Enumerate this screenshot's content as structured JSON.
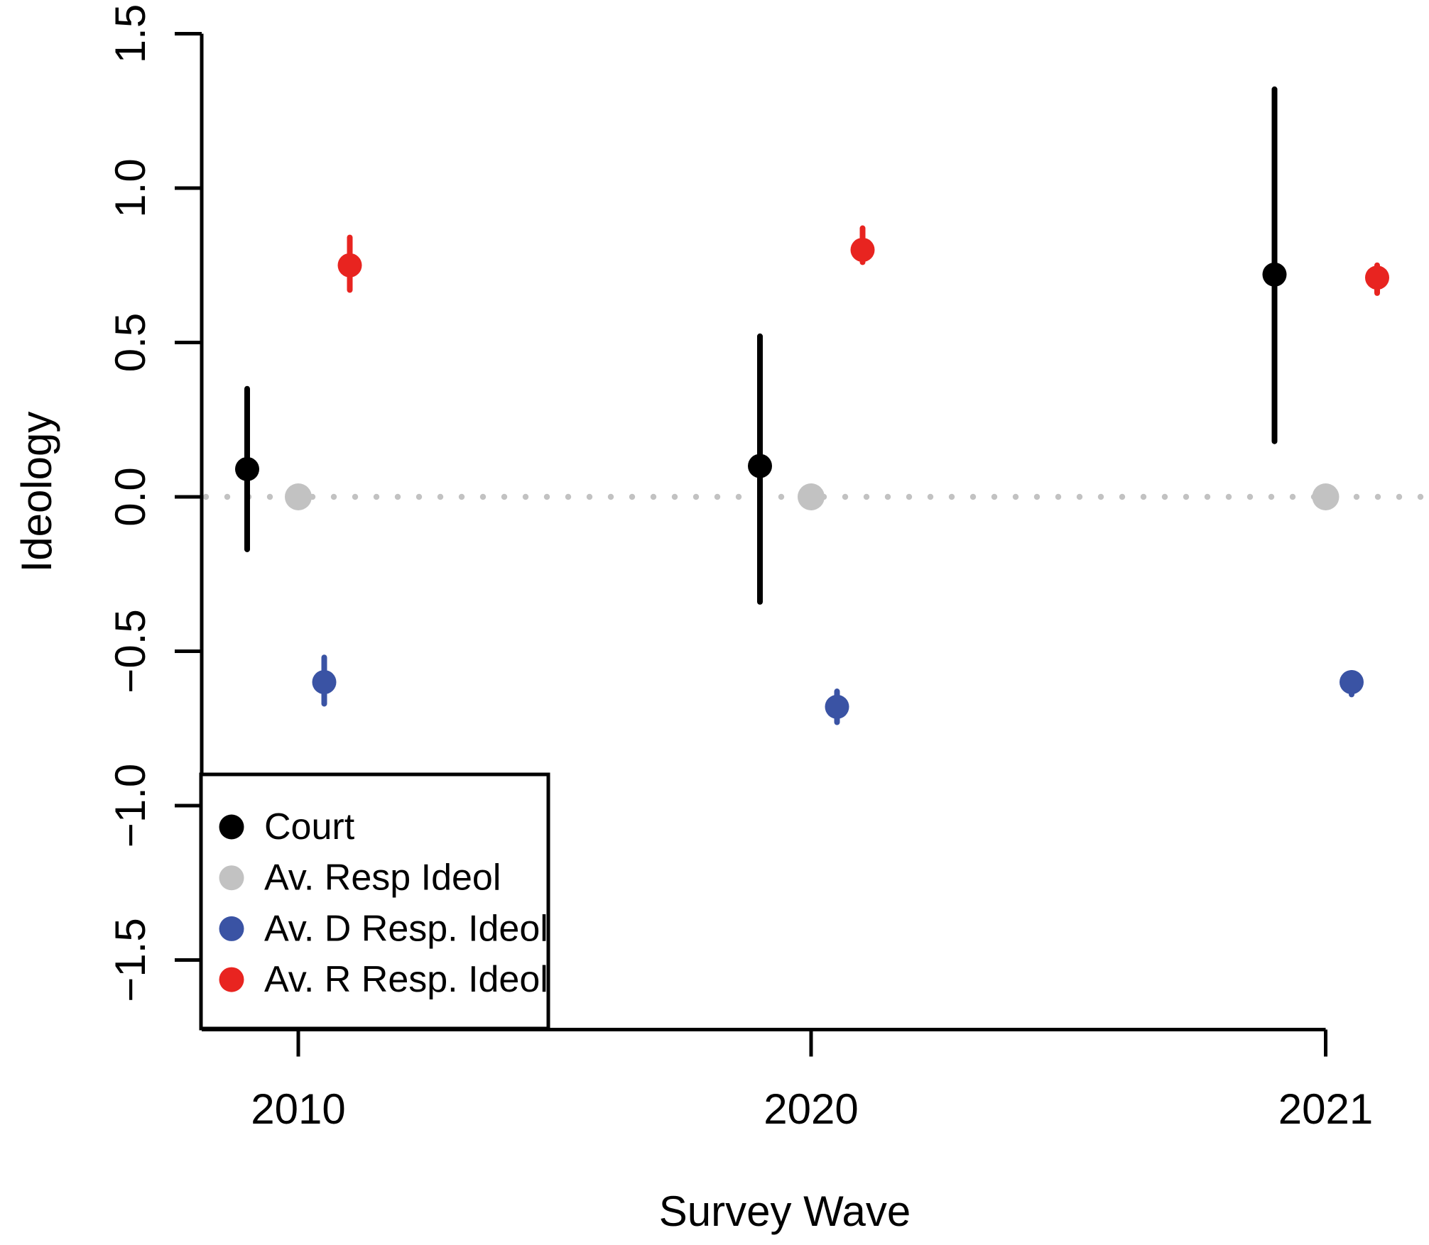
{
  "figure": {
    "background": "#ffffff"
  },
  "chart_data": {
    "type": "scatter",
    "subtype": "point-estimates-with-error-bars",
    "title": "",
    "xlabel": "Survey Wave",
    "ylabel": "Ideology",
    "categories": [
      "2010",
      "2020",
      "2021"
    ],
    "y_ticks": [
      {
        "value": -1.5,
        "label": "−1.5"
      },
      {
        "value": -1.0,
        "label": "−1.0"
      },
      {
        "value": -0.5,
        "label": "−0.5"
      },
      {
        "value": 0.0,
        "label": "0.0"
      },
      {
        "value": 0.5,
        "label": "0.5"
      },
      {
        "value": 1.0,
        "label": "1.0"
      },
      {
        "value": 1.5,
        "label": "1.5"
      }
    ],
    "ylim": [
      -1.7,
      1.6
    ],
    "grid": "off",
    "reference_line": {
      "y": 0.0,
      "style": "dotted",
      "color": "#C2C2C2"
    },
    "series": [
      {
        "name": "Court",
        "color": "#000000",
        "values": [
          {
            "wave": "2010",
            "y": 0.09,
            "ci": [
              -0.17,
              0.35
            ]
          },
          {
            "wave": "2020",
            "y": 0.1,
            "ci": [
              -0.34,
              0.52
            ]
          },
          {
            "wave": "2021",
            "y": 0.72,
            "ci": [
              0.18,
              1.32
            ]
          }
        ]
      },
      {
        "name": "Av. Resp Ideol",
        "color": "#C2C2C2",
        "values": [
          {
            "wave": "2010",
            "y": 0.0,
            "ci": null
          },
          {
            "wave": "2020",
            "y": 0.0,
            "ci": null
          },
          {
            "wave": "2021",
            "y": 0.0,
            "ci": null
          }
        ]
      },
      {
        "name": "Av. D Resp. Ideol",
        "color": "#3A53A4",
        "values": [
          {
            "wave": "2010",
            "y": -0.6,
            "ci": [
              -0.67,
              -0.52
            ]
          },
          {
            "wave": "2020",
            "y": -0.68,
            "ci": [
              -0.73,
              -0.63
            ]
          },
          {
            "wave": "2021",
            "y": -0.6,
            "ci": [
              -0.64,
              -0.57
            ]
          }
        ]
      },
      {
        "name": "Av. R Resp. Ideol",
        "color": "#E82420",
        "values": [
          {
            "wave": "2010",
            "y": 0.75,
            "ci": [
              0.67,
              0.84
            ]
          },
          {
            "wave": "2020",
            "y": 0.8,
            "ci": [
              0.76,
              0.87
            ]
          },
          {
            "wave": "2021",
            "y": 0.71,
            "ci": [
              0.66,
              0.75
            ]
          }
        ]
      }
    ],
    "legend": {
      "position": "bottom-left",
      "items": [
        {
          "label": "Court",
          "color": "#000000"
        },
        {
          "label": "Av. Resp Ideol",
          "color": "#C2C2C2"
        },
        {
          "label": "Av. D Resp. Ideol",
          "color": "#3A53A4"
        },
        {
          "label": "Av. R Resp. Ideol",
          "color": "#E82420"
        }
      ]
    }
  }
}
